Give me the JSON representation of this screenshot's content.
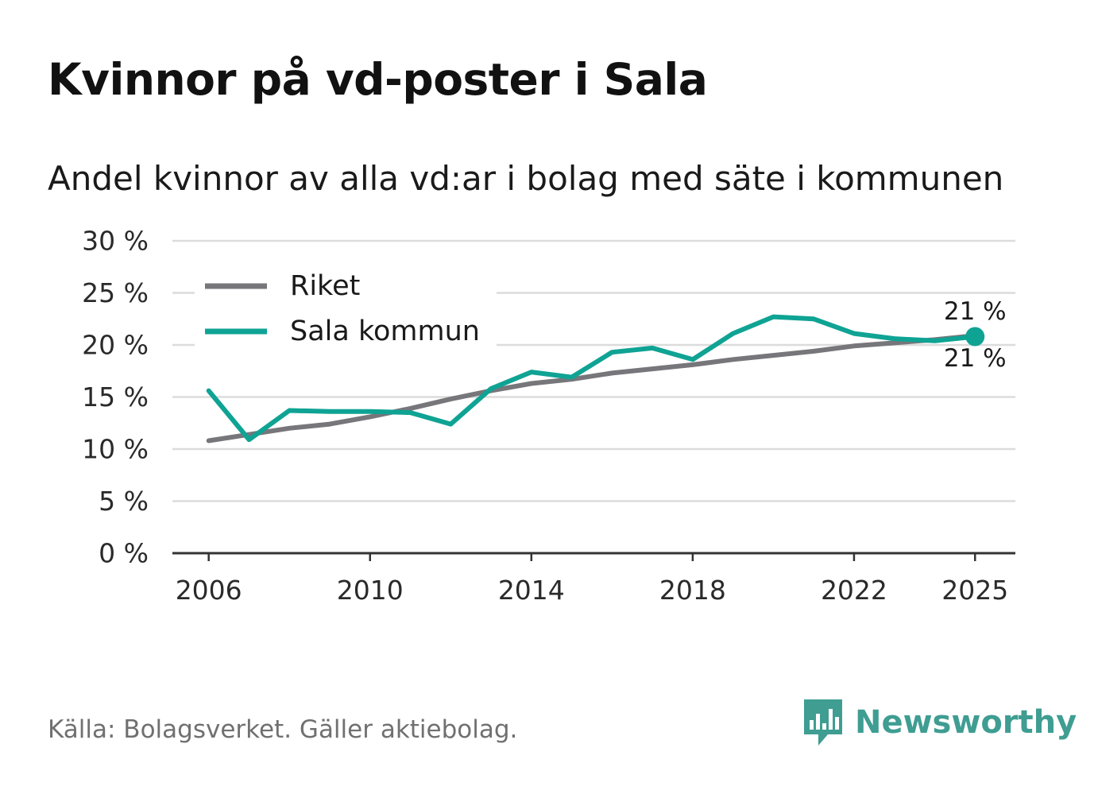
{
  "title": "Kvinnor på vd-poster i Sala",
  "subtitle": "Andel kvinnor av alla vd:ar i bolag med säte i kommunen",
  "source": "Källa: Bolagsverket. Gäller aktiebolag.",
  "brand": {
    "name": "Newsworthy",
    "color": "#3f9d92",
    "icon": "bar-chart-logo-icon"
  },
  "chart_data": {
    "type": "line",
    "title": "Kvinnor på vd-poster i Sala",
    "subtitle": "Andel kvinnor av alla vd:ar i bolag med säte i kommunen",
    "xlabel": "",
    "ylabel": "",
    "x": [
      2006,
      2007,
      2008,
      2009,
      2010,
      2011,
      2012,
      2013,
      2014,
      2015,
      2016,
      2017,
      2018,
      2019,
      2020,
      2021,
      2022,
      2023,
      2024,
      2025
    ],
    "xlim": [
      2005.1,
      2026
    ],
    "ylim": [
      0,
      30
    ],
    "x_ticks": [
      2006,
      2010,
      2014,
      2018,
      2022,
      2025
    ],
    "x_tick_labels": [
      "2006",
      "2010",
      "2014",
      "2018",
      "2022",
      "2025"
    ],
    "y_ticks": [
      0,
      5,
      10,
      15,
      20,
      25,
      30
    ],
    "y_tick_labels": [
      "0 %",
      "5 %",
      "10 %",
      "15 %",
      "20 %",
      "25 %",
      "30 %"
    ],
    "grid": true,
    "legend": {
      "position": "top-left",
      "entries": [
        "Riket",
        "Sala kommun"
      ]
    },
    "series": [
      {
        "name": "Riket",
        "color": "#77767b",
        "values": [
          10.8,
          11.4,
          12.0,
          12.4,
          13.1,
          13.9,
          14.8,
          15.6,
          16.3,
          16.7,
          17.3,
          17.7,
          18.1,
          18.6,
          19.0,
          19.4,
          19.9,
          20.2,
          20.5,
          20.9
        ],
        "end_label": "21 %"
      },
      {
        "name": "Sala kommun",
        "color": "#0fa394",
        "values": [
          15.6,
          10.9,
          13.7,
          13.6,
          13.6,
          13.5,
          12.4,
          15.8,
          17.4,
          16.9,
          19.3,
          19.7,
          18.6,
          21.1,
          22.7,
          22.5,
          21.1,
          20.6,
          20.4,
          20.8
        ],
        "end_label": "21 %"
      }
    ]
  }
}
